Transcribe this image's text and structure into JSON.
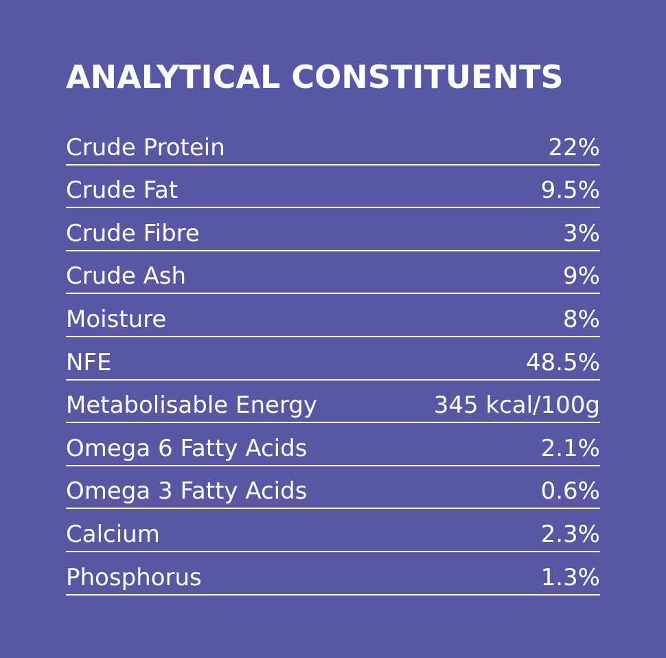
{
  "title": "ANALYTICAL CONSTITUENTS",
  "rows": [
    {
      "label": "Crude Protein",
      "value": "22%"
    },
    {
      "label": "Crude Fat",
      "value": "9.5%"
    },
    {
      "label": "Crude Fibre",
      "value": "3%"
    },
    {
      "label": "Crude Ash",
      "value": "9%"
    },
    {
      "label": "Moisture",
      "value": "8%"
    },
    {
      "label": "NFE",
      "value": "48.5%"
    },
    {
      "label": "Metabolisable Energy",
      "value": "345 kcal/100g"
    },
    {
      "label": "Omega 6 Fatty Acids",
      "value": "2.1%"
    },
    {
      "label": "Omega 3 Fatty Acids",
      "value": "0.6%"
    },
    {
      "label": "Calcium",
      "value": "2.3%"
    },
    {
      "label": "Phosphorus",
      "value": "1.3%"
    }
  ]
}
